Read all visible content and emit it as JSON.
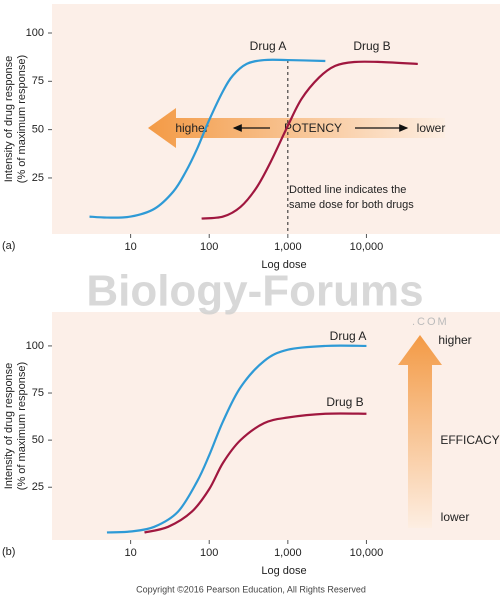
{
  "chart_data": [
    {
      "type": "line",
      "panel_label": "(a)",
      "x_label": "Log dose",
      "y_label": [
        "Intensity of drug response",
        "(% of maximum response)"
      ],
      "log_x": true,
      "xlim": [
        1,
        500000
      ],
      "ylim": [
        -4,
        115
      ],
      "xticks": [
        10,
        100,
        {
          "value": 1000,
          "label": "1,000"
        },
        {
          "value": 10000,
          "label": "10,000"
        }
      ],
      "yticks": [
        25,
        50,
        75,
        100
      ],
      "series": [
        {
          "name": "Drug A",
          "color": "#2e9ad6",
          "x": [
            3,
            5,
            10,
            20,
            35,
            50,
            70,
            100,
            150,
            200,
            300,
            500,
            1000,
            3000
          ],
          "values": [
            5,
            4.5,
            5,
            9,
            18,
            28,
            40,
            55,
            70,
            78,
            84,
            86,
            86,
            85.5
          ]
        },
        {
          "name": "Drug B",
          "color": "#a0173f",
          "x": [
            80,
            150,
            250,
            400,
            600,
            1000,
            1500,
            2500,
            4000,
            7000,
            15000,
            45000
          ],
          "values": [
            4,
            5,
            10,
            20,
            33,
            52,
            66,
            77,
            83,
            85,
            85,
            84
          ]
        }
      ],
      "ref_line_x": 1000,
      "ref_note": [
        "Dotted line indicates the",
        "same dose for both drugs"
      ],
      "arrow": {
        "title": "POTENCY",
        "high": "higher",
        "low": "lower"
      }
    },
    {
      "type": "line",
      "panel_label": "(b)",
      "x_label": "Log dose",
      "y_label": [
        "Intensity of drug response",
        "(% of maximum response)"
      ],
      "log_x": true,
      "xlim": [
        1,
        500000
      ],
      "ylim": [
        -3,
        118
      ],
      "xticks": [
        10,
        100,
        {
          "value": 1000,
          "label": "1,000"
        },
        {
          "value": 10000,
          "label": "10,000"
        }
      ],
      "yticks": [
        25,
        50,
        75,
        100
      ],
      "series": [
        {
          "name": "Drug A",
          "color": "#2e9ad6",
          "x": [
            5,
            10,
            20,
            40,
            70,
            100,
            150,
            250,
            500,
            1000,
            3000,
            10000
          ],
          "values": [
            1,
            1.5,
            4,
            12,
            28,
            42,
            60,
            78,
            92,
            98,
            100,
            100
          ]
        },
        {
          "name": "Drug B",
          "color": "#a0173f",
          "x": [
            15,
            30,
            60,
            100,
            150,
            250,
            500,
            1000,
            3000,
            10000
          ],
          "values": [
            1,
            4,
            12,
            24,
            38,
            50,
            59,
            62,
            64,
            64
          ]
        }
      ],
      "arrow": {
        "title": "EFFICACY",
        "high": "higher",
        "low": "lower"
      }
    }
  ],
  "watermark": {
    "main": "Biology-Forums",
    "sub": ".COM"
  },
  "copyright": "Copyright ©2016 Pearson Education, All Rights Reserved"
}
